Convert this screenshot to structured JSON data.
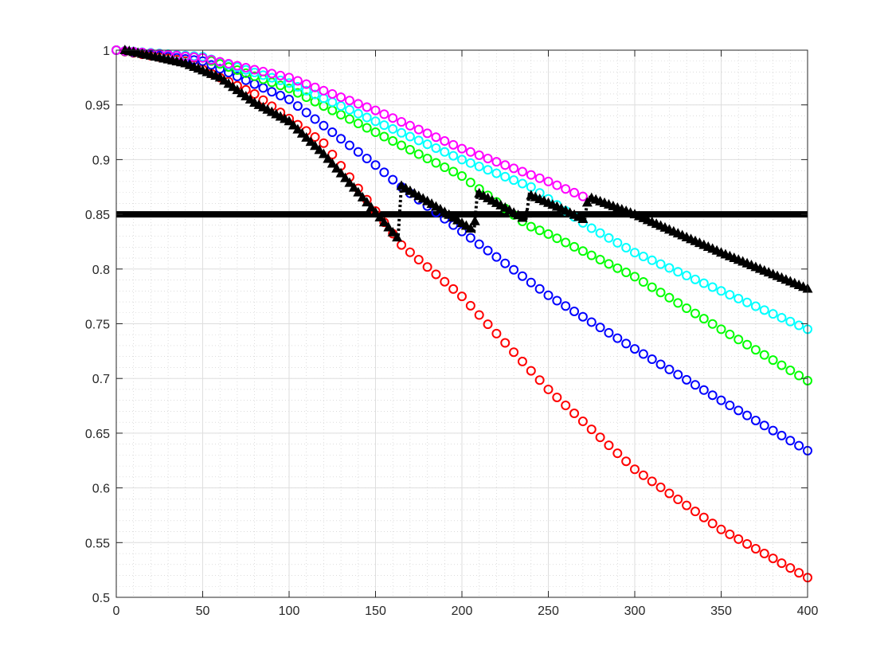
{
  "chart_data": {
    "type": "line",
    "title": "",
    "xlabel": "",
    "ylabel": "",
    "xlim": [
      0,
      400
    ],
    "ylim": [
      0.5,
      1
    ],
    "xticks": [
      0,
      50,
      100,
      150,
      200,
      250,
      300,
      350,
      400
    ],
    "yticks": [
      0.5,
      0.55,
      0.6,
      0.65,
      0.7,
      0.75,
      0.8,
      0.85,
      0.9,
      0.95,
      1
    ],
    "xtick_labels": [
      "0",
      "50",
      "100",
      "150",
      "200",
      "250",
      "300",
      "350",
      "400"
    ],
    "ytick_labels": [
      "0.5",
      "0.55",
      "0.6",
      "0.65",
      "0.7",
      "0.75",
      "0.8",
      "0.85",
      "0.9",
      "0.95",
      "1"
    ],
    "grid": true,
    "minor_grid": true,
    "legend": "none",
    "marker_step": 5,
    "threshold": {
      "value": 0.85,
      "color": "#000000"
    },
    "series": [
      {
        "color": "#ff0000",
        "marker": "circle",
        "points": [
          [
            0,
            1
          ],
          [
            40,
            0.99
          ],
          [
            80,
            0.96
          ],
          [
            120,
            0.915
          ],
          [
            165,
            0.822
          ],
          [
            200,
            0.775
          ],
          [
            250,
            0.69
          ],
          [
            300,
            0.617
          ],
          [
            350,
            0.562
          ],
          [
            400,
            0.518
          ]
        ]
      },
      {
        "color": "#0000ff",
        "marker": "circle",
        "points": [
          [
            0,
            1
          ],
          [
            50,
            0.99
          ],
          [
            100,
            0.955
          ],
          [
            150,
            0.895
          ],
          [
            165,
            0.875
          ],
          [
            208,
            0.825
          ],
          [
            250,
            0.776
          ],
          [
            300,
            0.727
          ],
          [
            350,
            0.68
          ],
          [
            400,
            0.634
          ]
        ]
      },
      {
        "color": "#00ff00",
        "marker": "circle",
        "points": [
          [
            0,
            1
          ],
          [
            50,
            0.993
          ],
          [
            100,
            0.965
          ],
          [
            150,
            0.925
          ],
          [
            200,
            0.885
          ],
          [
            238,
            0.84
          ],
          [
            250,
            0.832
          ],
          [
            300,
            0.793
          ],
          [
            350,
            0.745
          ],
          [
            400,
            0.698
          ]
        ]
      },
      {
        "color": "#00ffff",
        "marker": "circle",
        "points": [
          [
            0,
            1
          ],
          [
            50,
            0.994
          ],
          [
            100,
            0.97
          ],
          [
            150,
            0.935
          ],
          [
            200,
            0.9
          ],
          [
            240,
            0.875
          ],
          [
            272,
            0.84
          ],
          [
            300,
            0.815
          ],
          [
            350,
            0.78
          ],
          [
            400,
            0.745
          ]
        ]
      },
      {
        "color": "#ff00ff",
        "marker": "circle",
        "points": [
          [
            0,
            1
          ],
          [
            50,
            0.993
          ],
          [
            100,
            0.975
          ],
          [
            150,
            0.945
          ],
          [
            200,
            0.91
          ],
          [
            250,
            0.88
          ],
          [
            272,
            0.865
          ]
        ]
      },
      {
        "color": "#000000",
        "marker": "triangle",
        "points": [
          [
            5,
            1
          ],
          [
            20,
            0.995
          ],
          [
            40,
            0.988
          ],
          [
            60,
            0.975
          ],
          [
            80,
            0.952
          ],
          [
            100,
            0.935
          ],
          [
            120,
            0.905
          ],
          [
            140,
            0.87
          ],
          [
            163,
            0.828
          ],
          [
            165,
            0.876
          ],
          [
            180,
            0.862
          ],
          [
            190,
            0.852
          ],
          [
            207,
            0.835
          ],
          [
            209,
            0.87
          ],
          [
            225,
            0.856
          ],
          [
            237,
            0.845
          ],
          [
            239,
            0.868
          ],
          [
            255,
            0.857
          ],
          [
            271,
            0.845
          ],
          [
            273,
            0.866
          ],
          [
            300,
            0.85
          ],
          [
            350,
            0.815
          ],
          [
            400,
            0.782
          ]
        ]
      }
    ]
  }
}
